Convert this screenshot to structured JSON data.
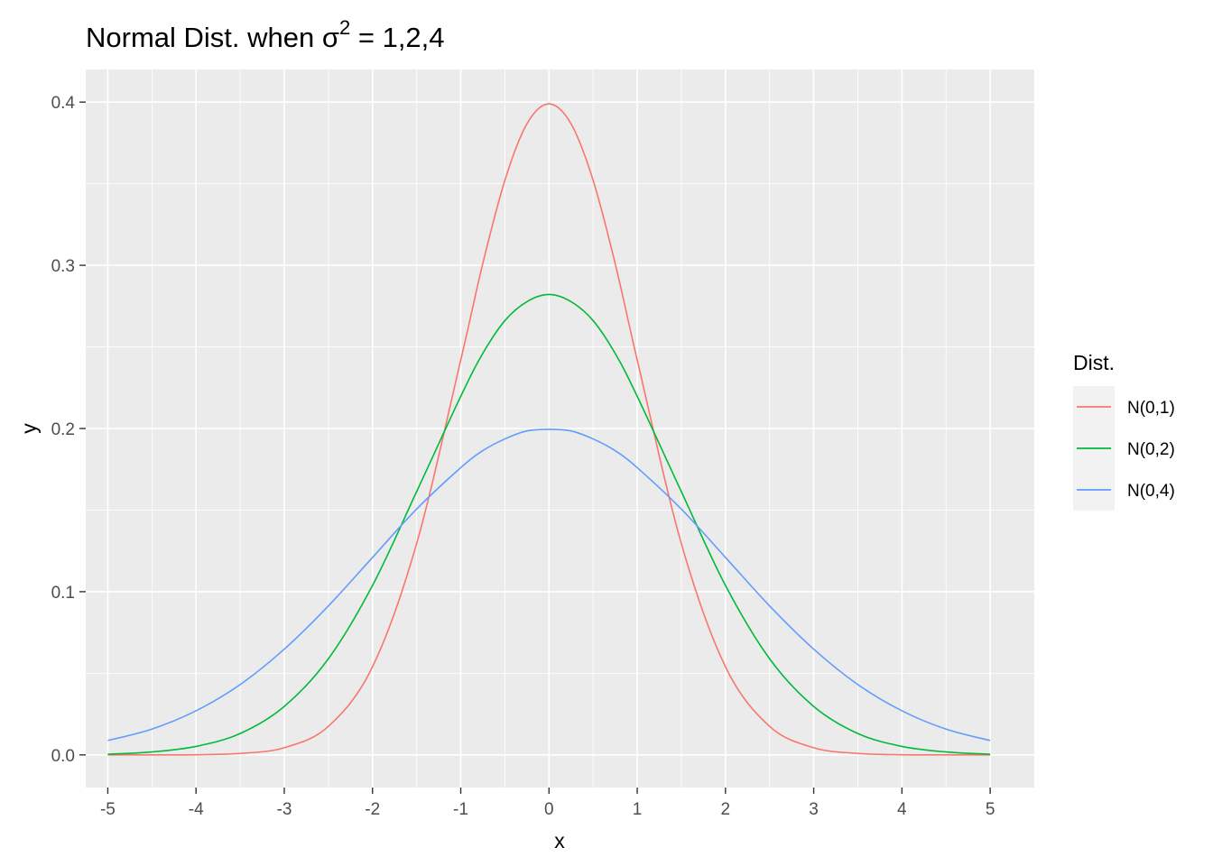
{
  "chart_data": {
    "type": "line",
    "title_prefix": "Normal Dist. when ",
    "title_symbol": "σ",
    "title_superscript": "2",
    "title_suffix": " = 1,2,4",
    "xlabel": "x",
    "ylabel": "y",
    "xlim": [
      -5.25,
      5.5
    ],
    "ylim": [
      -0.02,
      0.42
    ],
    "x_ticks": [
      -5,
      -4,
      -3,
      -2,
      -1,
      0,
      1,
      2,
      3,
      4,
      5
    ],
    "x_tick_labels": [
      "-5",
      "-4",
      "-3",
      "-2",
      "-1",
      "0",
      "1",
      "2",
      "3",
      "4",
      "5"
    ],
    "y_ticks": [
      0.0,
      0.1,
      0.2,
      0.3,
      0.4
    ],
    "y_tick_labels": [
      "0.0",
      "0.1",
      "0.2",
      "0.3",
      "0.4"
    ],
    "grid": true,
    "legend_position": "right",
    "legend_title": "Dist.",
    "x": [
      -5,
      -4.5,
      -4,
      -3.5,
      -3,
      -2.5,
      -2,
      -1.5,
      -1,
      -0.75,
      -0.5,
      -0.25,
      0,
      0.25,
      0.5,
      0.75,
      1,
      1.5,
      2,
      2.5,
      3,
      3.5,
      4,
      4.5,
      5
    ],
    "series": [
      {
        "name": "N(0,1)",
        "color": "#f8766d",
        "values": [
          0.0,
          0.0,
          0.0001,
          0.0009,
          0.0044,
          0.0175,
          0.054,
          0.1295,
          0.242,
          0.3011,
          0.3521,
          0.3867,
          0.3989,
          0.3867,
          0.3521,
          0.3011,
          0.242,
          0.1295,
          0.054,
          0.0175,
          0.0044,
          0.0009,
          0.0001,
          0.0,
          0.0
        ]
      },
      {
        "name": "N(0,2)",
        "color": "#00ba38",
        "values": [
          0.0004,
          0.0018,
          0.0052,
          0.0131,
          0.0297,
          0.0589,
          0.1038,
          0.1613,
          0.2197,
          0.246,
          0.2661,
          0.2777,
          0.2821,
          0.2777,
          0.2661,
          0.246,
          0.2197,
          0.1613,
          0.1038,
          0.0589,
          0.0297,
          0.0131,
          0.0052,
          0.0018,
          0.0004
        ]
      },
      {
        "name": "N(0,4)",
        "color": "#619cff",
        "values": [
          0.0088,
          0.0158,
          0.027,
          0.0431,
          0.0648,
          0.0913,
          0.121,
          0.1506,
          0.176,
          0.1864,
          0.1936,
          0.1985,
          0.1995,
          0.1985,
          0.1936,
          0.1864,
          0.176,
          0.1506,
          0.121,
          0.0913,
          0.0648,
          0.0431,
          0.027,
          0.0158,
          0.0088
        ]
      }
    ]
  }
}
